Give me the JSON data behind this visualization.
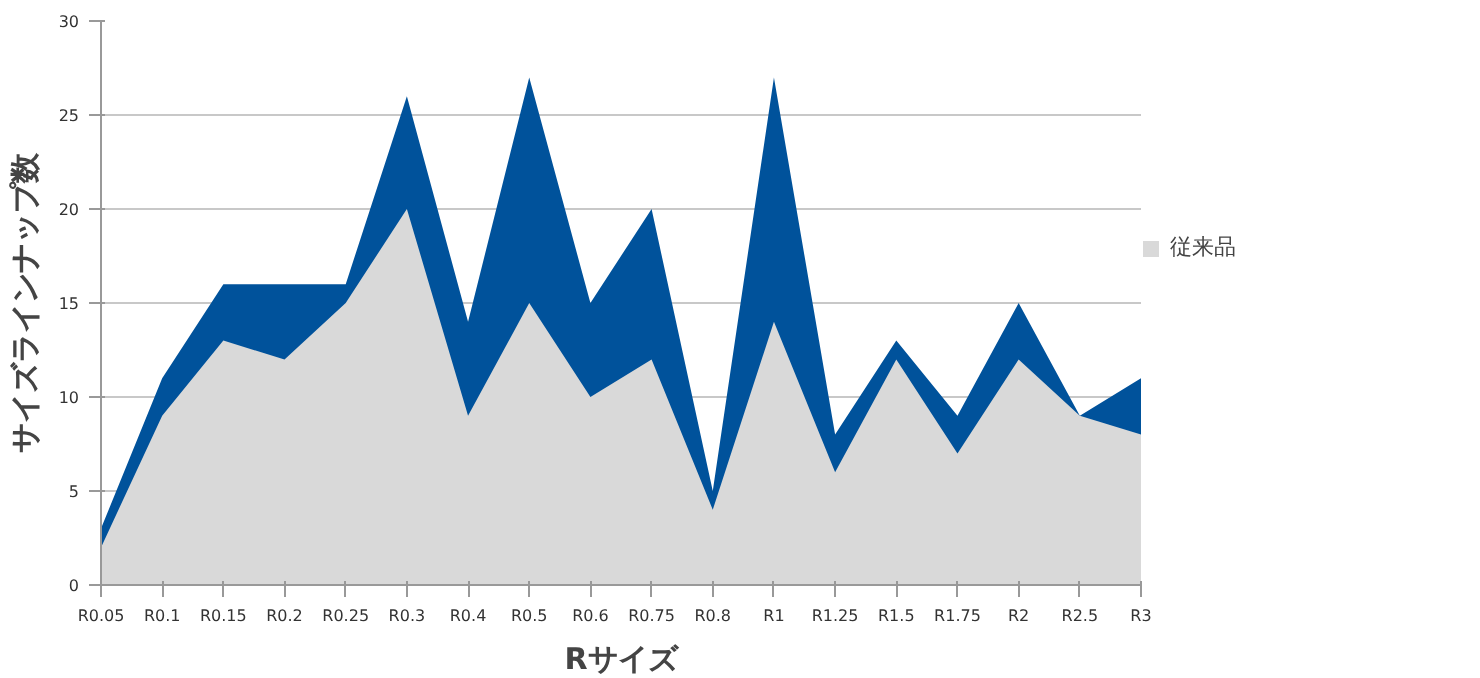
{
  "chart_data": {
    "type": "area",
    "xlabel": "Rサイズ",
    "ylabel": "サイズラインナップ数",
    "categories": [
      "R0.05",
      "R0.1",
      "R0.15",
      "R0.2",
      "R0.25",
      "R0.3",
      "R0.4",
      "R0.5",
      "R0.6",
      "R0.75",
      "R0.8",
      "R1",
      "R1.25",
      "R1.5",
      "R1.75",
      "R2",
      "R2.5",
      "R3"
    ],
    "series": [
      {
        "color": "#00529b",
        "values": [
          3,
          11,
          16,
          16,
          16,
          26,
          14,
          27,
          15,
          20,
          5,
          27,
          8,
          13,
          9,
          15,
          9,
          11
        ]
      },
      {
        "name": "従来品",
        "color": "#d9d9d9",
        "values": [
          2,
          9,
          13,
          12,
          15,
          20,
          9,
          15,
          10,
          12,
          4,
          14,
          6,
          12,
          7,
          12,
          9,
          8
        ]
      }
    ],
    "ylim": [
      0,
      30
    ],
    "yticks": [
      0,
      5,
      10,
      15,
      20,
      25,
      30
    ],
    "grid": "y",
    "legend": "right"
  }
}
